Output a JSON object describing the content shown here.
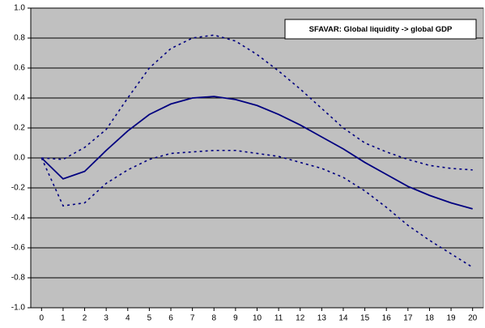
{
  "chart_data": {
    "type": "line",
    "annotation": "SFAVAR: Global liquidity -> global GDP",
    "x": [
      0,
      1,
      2,
      3,
      4,
      5,
      6,
      7,
      8,
      9,
      10,
      11,
      12,
      13,
      14,
      15,
      16,
      17,
      18,
      19,
      20
    ],
    "xlim": [
      -0.5,
      20.5
    ],
    "xticks": [
      0,
      1,
      2,
      3,
      4,
      5,
      6,
      7,
      8,
      9,
      10,
      11,
      12,
      13,
      14,
      15,
      16,
      17,
      18,
      19,
      20
    ],
    "ylim": [
      -1,
      1
    ],
    "yticks": [
      {
        "value": 1,
        "label": "1.0"
      },
      0.8,
      0.6,
      0.4,
      0.2,
      {
        "value": 0,
        "label": "0.0"
      },
      -0.2,
      -0.4,
      -0.6,
      -0.8,
      {
        "value": -1,
        "label": "-1.0"
      }
    ],
    "grid": true,
    "plot_background": "#c0c0c0",
    "series": [
      {
        "color": "#000080",
        "style": "solid",
        "values": [
          0,
          -0.14,
          -0.09,
          0.05,
          0.18,
          0.29,
          0.36,
          0.4,
          0.41,
          0.39,
          0.35,
          0.29,
          0.22,
          0.14,
          0.06,
          -0.03,
          -0.11,
          -0.19,
          -0.25,
          -0.3,
          -0.34
        ]
      },
      {
        "color": "#000080",
        "style": "dashed",
        "values": [
          0,
          -0.01,
          0.07,
          0.19,
          0.4,
          0.6,
          0.73,
          0.8,
          0.82,
          0.78,
          0.69,
          0.58,
          0.46,
          0.33,
          0.2,
          0.1,
          0.04,
          -0.01,
          -0.05,
          -0.07,
          -0.08
        ]
      },
      {
        "color": "#000080",
        "style": "dashed",
        "values": [
          0,
          -0.32,
          -0.3,
          -0.17,
          -0.08,
          -0.01,
          0.03,
          0.04,
          0.05,
          0.05,
          0.03,
          0.01,
          -0.03,
          -0.07,
          -0.13,
          -0.22,
          -0.33,
          -0.45,
          -0.55,
          -0.64,
          -0.73
        ]
      }
    ]
  }
}
